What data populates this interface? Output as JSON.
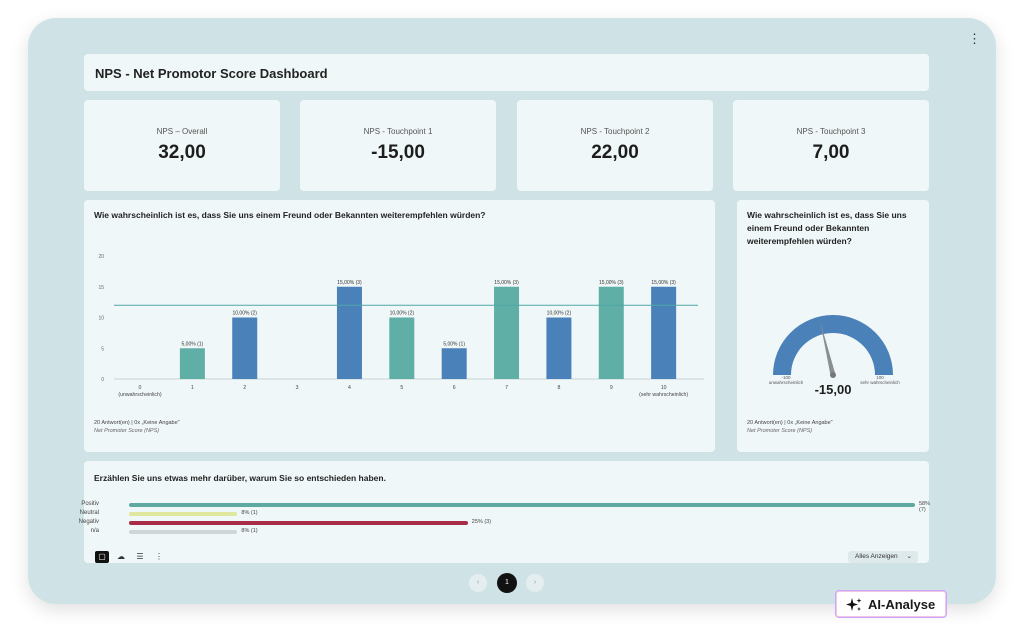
{
  "dashboard": {
    "title": "NPS - Net Promotor Score Dashboard"
  },
  "kpis": [
    {
      "label": "NPS – Overall",
      "value": "32,00"
    },
    {
      "label": "NPS - Touchpoint 1",
      "value": "-15,00"
    },
    {
      "label": "NPS - Touchpoint 2",
      "value": "22,00"
    },
    {
      "label": "NPS - Touchpoint 3",
      "value": "7,00"
    }
  ],
  "bar_panel": {
    "question": "Wie wahrscheinlich ist es, dass Sie uns einem Freund oder Bekannten weiterempfehlen würden?",
    "note_line1": "20 Antwort(en) | 0x „Keine Angabe\"",
    "note_line2": "Net Promoter Score (NPS)"
  },
  "gauge_panel": {
    "question": "Wie wahrscheinlich ist es, dass Sie uns einem Freund oder Bekannten weiterempfehlen würden?",
    "value": "-15,00",
    "value_num": -15,
    "min_label": "-100",
    "min_text": "unwahrscheinlich",
    "max_label": "100",
    "max_text": "sehr wahrscheinlich",
    "note_line1": "20 Antwort(en) | 0x „Keine Angabe\"",
    "note_line2": "Net Promoter Score (NPS)"
  },
  "text_panel": {
    "question": "Erzählen Sie uns etwas mehr darüber, warum Sie so entschieden haben.",
    "show_all": "Alles Anzeigen"
  },
  "pagination": {
    "prev": "‹",
    "current": "1",
    "next": "›"
  },
  "ai_button": {
    "label": "AI-Analyse"
  },
  "colors": {
    "teal": "#5fafa6",
    "blue": "#4a81b8",
    "ref_line": "#4fa8a6",
    "positiv": "#5fa9a0",
    "neutral": "#e0e79e",
    "negativ": "#a92d48",
    "na": "#d0d6d8"
  },
  "chart_data": [
    {
      "type": "bar",
      "categories": [
        "0 (unwahrscheinlich)",
        "1",
        "2",
        "3",
        "4",
        "5",
        "6",
        "7",
        "8",
        "9",
        "10 (sehr wahrscheinlich)"
      ],
      "values": [
        0,
        5,
        10,
        0,
        15,
        10,
        5,
        15,
        10,
        15,
        15
      ],
      "data_labels": [
        "",
        "5,00% (1)",
        "10,00% (2)",
        "",
        "15,00% (3)",
        "10,00% (2)",
        "5,00% (1)",
        "15,00% (3)",
        "10,00% (2)",
        "15,00% (3)",
        "15,00% (3)"
      ],
      "bar_colors": [
        "teal",
        "teal",
        "blue",
        "blue",
        "blue",
        "teal",
        "blue",
        "teal",
        "blue",
        "teal",
        "blue"
      ],
      "yticks": [
        0,
        5,
        10,
        15,
        20
      ],
      "ylim": [
        0,
        20
      ],
      "reference_line": 12,
      "title": "Wie wahrscheinlich ist es, dass Sie uns einem Freund oder Bekannten weiterempfehlen würden?"
    },
    {
      "type": "bar",
      "orientation": "horizontal",
      "categories": [
        "Positiv",
        "Neutral",
        "Negativ",
        "n/a"
      ],
      "values": [
        58,
        8,
        25,
        8
      ],
      "data_labels": [
        "58% (7)",
        "8% (1)",
        "25% (3)",
        "8% (1)"
      ],
      "title": "Erzählen Sie uns etwas mehr darüber, warum Sie so entschieden haben."
    }
  ]
}
